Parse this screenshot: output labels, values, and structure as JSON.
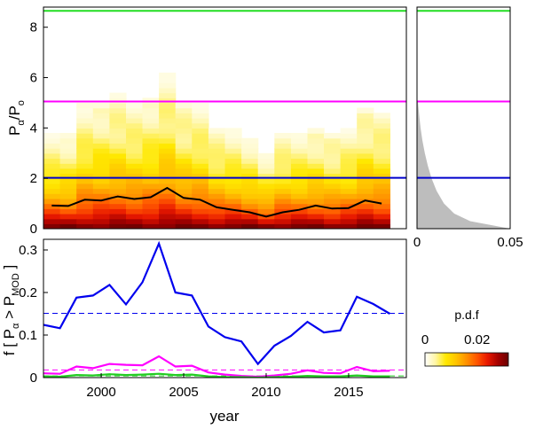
{
  "chart_data": [
    {
      "type": "heatmap",
      "panel": "top-left",
      "ylabel": {
        "main": "P",
        "sub1": "α",
        "mid": "/P",
        "sub2": "o"
      },
      "xlim": [
        1996.5,
        2018.5
      ],
      "ylim": [
        0,
        8.8
      ],
      "yticks": [
        "0",
        "2",
        "4",
        "6",
        "8"
      ],
      "yticks_values": [
        0,
        2,
        4,
        6,
        8
      ],
      "x": [
        1997,
        1998,
        1999,
        2000,
        2001,
        2002,
        2003,
        2004,
        2005,
        2006,
        2007,
        2008,
        2009,
        2010,
        2011,
        2012,
        2013,
        2014,
        2015,
        2016,
        2017
      ],
      "median_line": [
        0.92,
        0.9,
        1.15,
        1.12,
        1.28,
        1.18,
        1.25,
        1.62,
        1.22,
        1.15,
        0.85,
        0.75,
        0.65,
        0.48,
        0.65,
        0.75,
        0.92,
        0.8,
        0.82,
        1.12,
        1.0
      ],
      "column_max": [
        3.7,
        3.7,
        4.9,
        5.0,
        5.3,
        5.0,
        5.2,
        6.1,
        5.0,
        4.9,
        4.0,
        3.9,
        3.6,
        3.0,
        3.7,
        3.8,
        4.0,
        3.7,
        3.9,
        4.8,
        4.6
      ],
      "reference_lines": [
        {
          "value": 8.65,
          "color": "#22dd22"
        },
        {
          "value": 5.05,
          "color": "#ff00ff"
        },
        {
          "value": 2.02,
          "color": "#0000cc"
        }
      ]
    },
    {
      "type": "area",
      "panel": "top-right",
      "xlim": [
        0,
        0.05
      ],
      "ylim": [
        0,
        8.8
      ],
      "xticks": [
        "0",
        "0.05"
      ],
      "xticks_values": [
        0,
        0.05
      ],
      "pdf_y": [
        0,
        0.3,
        0.6,
        1.0,
        1.5,
        2.0,
        2.5,
        3.0,
        3.5,
        4.0,
        4.5,
        5.0,
        5.2
      ],
      "pdf_x": [
        0.05,
        0.0285,
        0.02,
        0.0145,
        0.0105,
        0.0078,
        0.0058,
        0.0042,
        0.0029,
        0.0019,
        0.0012,
        0.0005,
        0.0
      ],
      "fill_color": "#bdbdbd",
      "reference_lines": [
        {
          "value": 8.65,
          "color": "#22dd22"
        },
        {
          "value": 5.05,
          "color": "#ff00ff"
        },
        {
          "value": 2.02,
          "color": "#0000cc"
        }
      ]
    },
    {
      "type": "line",
      "panel": "bottom-left",
      "xlabel": "year",
      "ylabel": {
        "main": "f [ P",
        "sub1": "α",
        "mid": " > P",
        "sub2": "MOD",
        "end": " ]"
      },
      "xlim": [
        1996.5,
        2018.5
      ],
      "ylim": [
        0,
        0.325
      ],
      "xticks": [
        "2000",
        "2005",
        "2010",
        "2015"
      ],
      "xticks_values": [
        2000,
        2005,
        2010,
        2015
      ],
      "yticks": [
        "0",
        "0.1",
        "0.2",
        "0.3"
      ],
      "yticks_values": [
        0,
        0.1,
        0.2,
        0.3
      ],
      "x": [
        1996.5,
        1997.5,
        1998.5,
        1999.5,
        2000.5,
        2001.5,
        2002.5,
        2003.5,
        2004.5,
        2005.5,
        2006.5,
        2007.5,
        2008.5,
        2009.5,
        2010.5,
        2011.5,
        2012.5,
        2013.5,
        2014.5,
        2015.5,
        2016.5,
        2017.5
      ],
      "series": [
        {
          "color": "#0000ee",
          "values": [
            0.124,
            0.116,
            0.188,
            0.193,
            0.218,
            0.172,
            0.224,
            0.315,
            0.2,
            0.193,
            0.12,
            0.095,
            0.085,
            0.032,
            0.075,
            0.098,
            0.131,
            0.106,
            0.111,
            0.19,
            0.173,
            0.15
          ],
          "reference": 0.151
        },
        {
          "color": "#ff00ff",
          "values": [
            0.01,
            0.009,
            0.026,
            0.022,
            0.032,
            0.03,
            0.029,
            0.05,
            0.026,
            0.028,
            0.012,
            0.007,
            0.004,
            0.002,
            0.005,
            0.009,
            0.017,
            0.011,
            0.01,
            0.025,
            0.015,
            0.016
          ],
          "reference": 0.018
        },
        {
          "color": "#22cc22",
          "values": [
            0.003,
            0.002,
            0.006,
            0.005,
            0.008,
            0.006,
            0.007,
            0.009,
            0.006,
            0.007,
            0.003,
            0.001,
            0.001,
            0.0,
            0.001,
            0.002,
            0.004,
            0.003,
            0.003,
            0.005,
            0.003,
            0.003
          ],
          "reference": 0.004
        }
      ]
    }
  ],
  "colorbar": {
    "title": "p.d.f",
    "ticks": [
      "0",
      "0.02"
    ],
    "ticks_values": [
      0,
      0.02
    ],
    "range": [
      0,
      0.032
    ],
    "colors": [
      "#ffffff",
      "#fff6a6",
      "#ffe800",
      "#ffc400",
      "#ff9000",
      "#ff5500",
      "#e81800",
      "#a50000",
      "#6a0000"
    ]
  }
}
